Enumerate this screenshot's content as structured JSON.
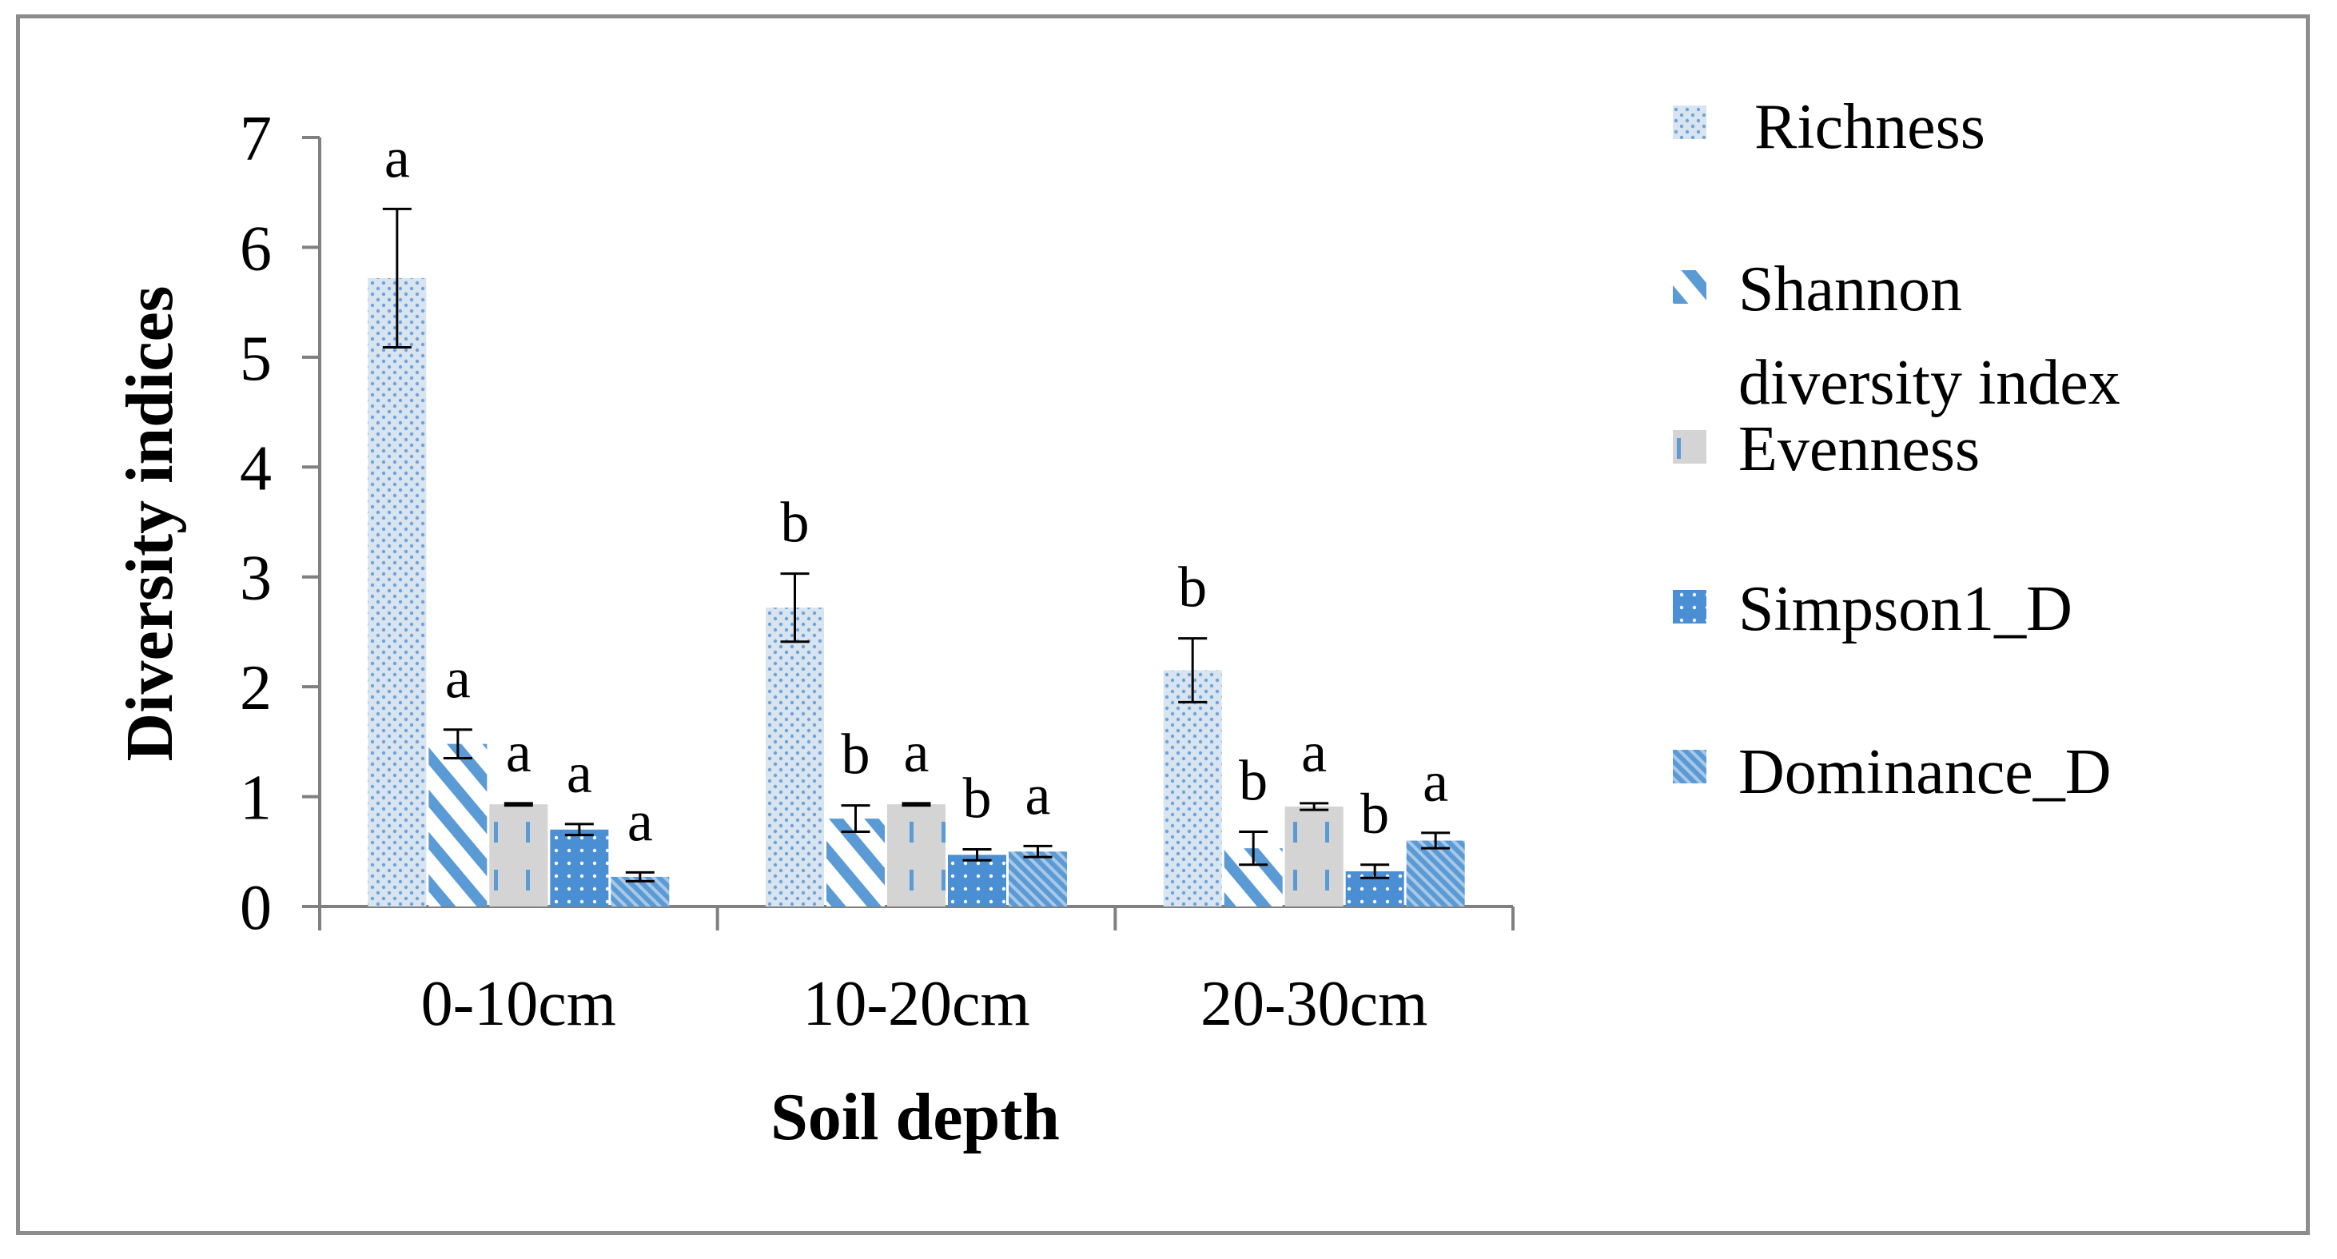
{
  "chart_data": {
    "type": "bar",
    "title": "",
    "xlabel": "Soil depth",
    "ylabel": "Diversity indices",
    "ylim": [
      0,
      7
    ],
    "yticks": [
      0,
      1,
      2,
      3,
      4,
      5,
      6,
      7
    ],
    "categories": [
      "0-10cm",
      "10-20cm",
      "20-30cm"
    ],
    "series": [
      {
        "name": "Richness",
        "pattern": "dots",
        "color": "#a9c8e8",
        "values": [
          5.72,
          2.72,
          2.15
        ],
        "errors": [
          0.63,
          0.31,
          0.29
        ],
        "letters": [
          "a",
          "b",
          "b"
        ]
      },
      {
        "name": "Shannon diversity index",
        "pattern": "diag-wide",
        "color": "#5b9bd5",
        "values": [
          1.48,
          0.8,
          0.53
        ],
        "errors": [
          0.13,
          0.12,
          0.15
        ],
        "letters": [
          "a",
          "b",
          "b"
        ]
      },
      {
        "name": "Evenness",
        "pattern": "dashes",
        "color": "#5b9bd5",
        "values": [
          0.93,
          0.93,
          0.91
        ],
        "errors": [
          0.01,
          0.01,
          0.03
        ],
        "letters": [
          "a",
          "a",
          "a"
        ]
      },
      {
        "name": "Simpson1_D",
        "pattern": "solid-dots",
        "color": "#5b9bd5",
        "values": [
          0.7,
          0.47,
          0.32
        ],
        "errors": [
          0.05,
          0.05,
          0.06
        ],
        "letters": [
          "a",
          "b",
          "b"
        ]
      },
      {
        "name": "Dominance_D",
        "pattern": "diag-fine",
        "color": "#5b9bd5",
        "values": [
          0.27,
          0.5,
          0.6
        ],
        "errors": [
          0.04,
          0.05,
          0.07
        ],
        "letters": [
          "a",
          "a",
          "a"
        ]
      }
    ],
    "legend_position": "right",
    "grid": false
  },
  "legend": {
    "items": [
      "Richness",
      "Shannon",
      "diversity index",
      "Evenness",
      "Simpson1_D",
      "Dominance_D"
    ]
  }
}
